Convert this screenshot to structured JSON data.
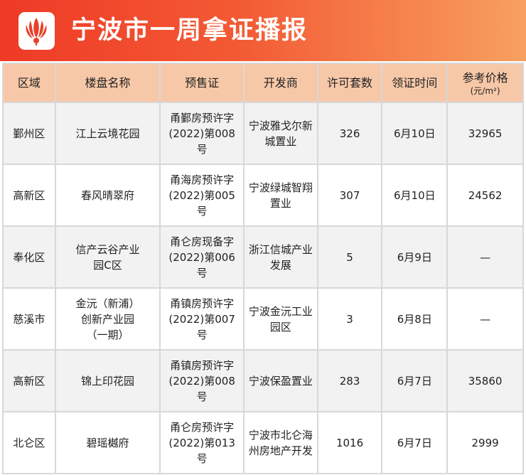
{
  "header": {
    "title": "宁波市一周拿证播报",
    "logo_icon": "lotus-logo-icon",
    "colors": {
      "banner_start": "#ee3a26",
      "banner_end": "#f8a060",
      "header_bg": "#f7c8a8"
    }
  },
  "table": {
    "columns": [
      "区域",
      "楼盘名称",
      "预售证",
      "开发商",
      "许可套数",
      "领证时间",
      "参考价格"
    ],
    "price_unit": "(元/m²)",
    "rows": [
      {
        "district": "鄞州区",
        "project": "江上云境花园",
        "permit": "甬鄞房预许字(2022)第008号",
        "developer": "宁波雅戈尔新城置业",
        "units": "326",
        "date": "6月10日",
        "price": "32965"
      },
      {
        "district": "高新区",
        "project": "春风晴翠府",
        "permit": "甬海房预许字(2022)第005号",
        "developer": "宁波绿城智翔置业",
        "units": "307",
        "date": "6月10日",
        "price": "24562"
      },
      {
        "district": "奉化区",
        "project": "信产云谷产业园C区",
        "permit": "甬仑房现备字(2022)第006号",
        "developer": "浙江信城产业发展",
        "units": "5",
        "date": "6月9日",
        "price": "—"
      },
      {
        "district": "慈溪市",
        "project": "金沅（新浦）创新产业园（一期）",
        "permit": "甬镇房预许字(2022)第007号",
        "developer": "宁波金沅工业园区",
        "units": "3",
        "date": "6月8日",
        "price": "—"
      },
      {
        "district": "高新区",
        "project": "锦上印花园",
        "permit": "甬镇房预许字(2022)第008号",
        "developer": "宁波保盈置业",
        "units": "283",
        "date": "6月7日",
        "price": "35860"
      },
      {
        "district": "北仑区",
        "project": "碧瑶樾府",
        "permit": "甬仑房预许字(2022)第013号",
        "developer": "宁波市北仑海州房地产开发",
        "units": "1016",
        "date": "6月7日",
        "price": "2999"
      }
    ]
  }
}
